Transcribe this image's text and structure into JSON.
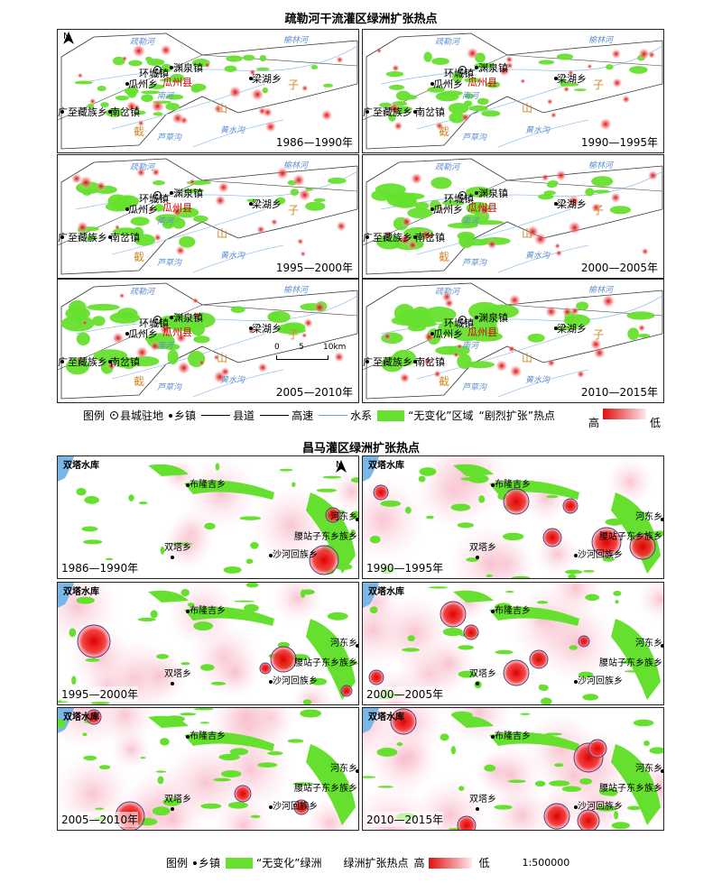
{
  "top": {
    "title": "疏勒河干流灌区绿洲扩张热点",
    "north": "N",
    "panels": [
      {
        "period": "1986—1990年"
      },
      {
        "period": "1990—1995年"
      },
      {
        "period": "1995—2000年"
      },
      {
        "period": "2000—2005年"
      },
      {
        "period": "2005—2010年"
      },
      {
        "period": "2010—2015年"
      }
    ],
    "places": {
      "huancheng": "环城镇",
      "yuanquan": "渊泉镇",
      "guazhou_town": "瓜州乡",
      "guazhou_county": "瓜州县",
      "lianghu": "梁湖乡",
      "guangzhi": "广至藏族乡",
      "nancha": "南岔镇",
      "mountain_1": "截",
      "mountain_2": "山",
      "mountain_3": "子"
    },
    "rivers": {
      "shule": "疏勒河",
      "yumen": "榆林河",
      "lucao": "芦草沟",
      "huangshui": "黄水沟",
      "nanhe": "南河"
    },
    "scale_bar": {
      "ticks": [
        "0",
        "5",
        "10km"
      ]
    },
    "legend": {
      "label": "图例",
      "county_seat": "县城驻地",
      "town": "乡镇",
      "county_road": "县道",
      "highway": "高速",
      "water": "水系",
      "unchanged": "“无变化”区域",
      "hotspot": "“剧烈扩张”热点",
      "high": "高",
      "low": "低"
    }
  },
  "bottom": {
    "title": "昌马灌区绿洲扩张热点",
    "north": "N",
    "panels": [
      {
        "period": "1986—1990年"
      },
      {
        "period": "1990—1995年"
      },
      {
        "period": "1995—2000年"
      },
      {
        "period": "2000—2005年"
      },
      {
        "period": "2005—2010年"
      },
      {
        "period": "2010—2015年"
      }
    ],
    "places": {
      "reservoir": "双塔水库",
      "bulongji": "布隆吉乡",
      "shuangta": "双塔乡",
      "yaozhan": "腰站子东乡族乡",
      "shahe": "沙河回族乡",
      "hedong": "河东乡"
    },
    "legend": {
      "label": "图例",
      "town": "乡镇",
      "unchanged": "“无变化”绿洲",
      "hotspot": "绿洲扩张热点",
      "high": "高",
      "low": "低",
      "scale": "1:500000"
    }
  },
  "colors": {
    "green": "#66e02e",
    "hot": "#e01010",
    "pink": "#fbd3de",
    "river": "#6aa0d8",
    "water": "#7ab6e6"
  }
}
